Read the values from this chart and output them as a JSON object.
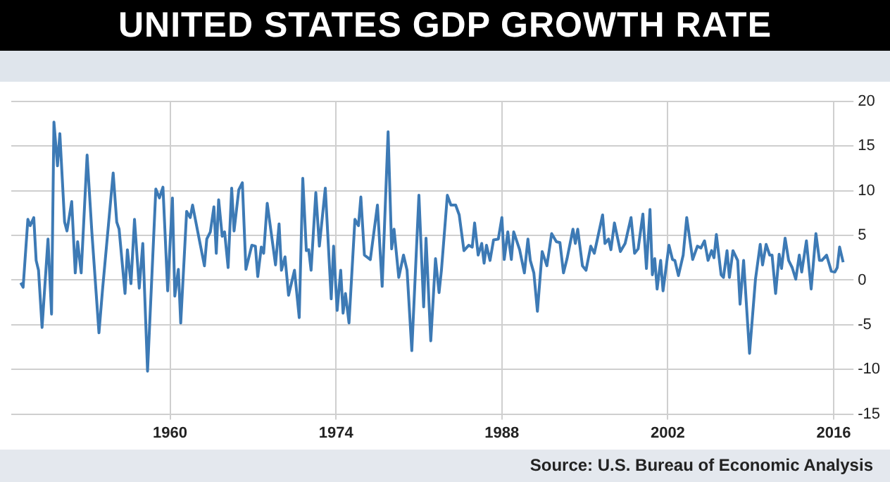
{
  "chart_data": {
    "type": "line",
    "title": "UNITED STATES GDP GROWTH RATE",
    "x": [
      1947.4,
      1947.6,
      1948.0,
      1948.2,
      1948.5,
      1948.7,
      1948.9,
      1949.2,
      1949.7,
      1950.0,
      1950.2,
      1950.5,
      1950.7,
      1951.1,
      1951.3,
      1951.7,
      1952.0,
      1952.2,
      1952.5,
      1953.0,
      1953.4,
      1954.0,
      1954.3,
      1955.2,
      1955.5,
      1955.7,
      1956.2,
      1956.4,
      1956.7,
      1957.0,
      1957.4,
      1957.7,
      1958.1,
      1958.8,
      1959.1,
      1959.4,
      1959.8,
      1960.2,
      1960.4,
      1960.7,
      1960.9,
      1961.4,
      1961.7,
      1961.9,
      1962.5,
      1962.9,
      1963.1,
      1963.4,
      1963.7,
      1963.9,
      1964.1,
      1964.4,
      1964.6,
      1964.9,
      1965.2,
      1965.4,
      1965.8,
      1966.1,
      1966.4,
      1966.9,
      1967.2,
      1967.4,
      1967.7,
      1967.9,
      1968.2,
      1968.9,
      1969.2,
      1969.4,
      1969.7,
      1970.0,
      1970.5,
      1970.9,
      1971.2,
      1971.5,
      1971.7,
      1971.9,
      1972.3,
      1972.6,
      1973.1,
      1973.6,
      1973.8,
      1974.1,
      1974.4,
      1974.6,
      1974.8,
      1975.1,
      1975.6,
      1975.9,
      1976.1,
      1976.4,
      1976.9,
      1977.5,
      1977.9,
      1978.4,
      1978.7,
      1978.9,
      1979.3,
      1979.7,
      1980.0,
      1980.4,
      1981.0,
      1981.4,
      1981.6,
      1982.0,
      1982.4,
      1982.7,
      1982.9,
      1983.4,
      1983.7,
      1984.1,
      1984.4,
      1984.8,
      1985.2,
      1985.5,
      1985.7,
      1986.0,
      1986.3,
      1986.5,
      1986.7,
      1987.0,
      1987.3,
      1987.7,
      1988.0,
      1988.2,
      1988.5,
      1988.8,
      1989.0,
      1989.5,
      1989.9,
      1990.2,
      1990.4,
      1990.7,
      1991.0,
      1991.4,
      1991.8,
      1992.2,
      1992.6,
      1992.9,
      1993.2,
      1993.5,
      1994.0,
      1994.2,
      1994.4,
      1994.8,
      1995.1,
      1995.5,
      1995.8,
      1996.5,
      1996.7,
      1997.0,
      1997.2,
      1997.5,
      1998.0,
      1998.4,
      1998.9,
      1999.2,
      1999.5,
      1999.9,
      2000.2,
      2000.5,
      2000.7,
      2000.9,
      2001.1,
      2001.4,
      2001.6,
      2002.1,
      2002.4,
      2002.6,
      2002.9,
      2003.3,
      2003.6,
      2004.1,
      2004.5,
      2004.8,
      2005.1,
      2005.4,
      2005.7,
      2005.9,
      2006.1,
      2006.5,
      2006.7,
      2007.0,
      2007.2,
      2007.5,
      2007.9,
      2008.1,
      2008.4,
      2008.9,
      2009.4,
      2009.8,
      2010.0,
      2010.3,
      2010.6,
      2010.8,
      2011.1,
      2011.4,
      2011.6,
      2011.9,
      2012.2,
      2012.5,
      2012.8,
      2013.1,
      2013.3,
      2013.7,
      2014.1,
      2014.5,
      2014.8,
      2015.0,
      2015.4,
      2015.8,
      2016.1,
      2016.3,
      2016.5,
      2016.8
    ],
    "values": [
      -0.3,
      -0.8,
      6.8,
      6.1,
      7.0,
      2.2,
      1.1,
      -5.3,
      4.6,
      -3.8,
      17.7,
      12.8,
      16.4,
      6.5,
      5.5,
      8.8,
      0.8,
      4.3,
      0.8,
      14.0,
      5.4,
      -5.9,
      -1.1,
      12.0,
      6.5,
      5.7,
      -1.5,
      3.4,
      -0.4,
      6.8,
      -0.9,
      4.1,
      -10.2,
      10.2,
      9.2,
      10.4,
      -1.2,
      9.2,
      -1.8,
      1.2,
      -4.8,
      7.7,
      7.0,
      8.4,
      4.3,
      1.6,
      4.6,
      5.4,
      8.2,
      3.0,
      9.0,
      4.9,
      5.4,
      1.4,
      10.3,
      5.5,
      10.1,
      10.9,
      1.2,
      3.9,
      3.8,
      0.4,
      3.7,
      3.0,
      8.6,
      1.7,
      6.3,
      1.1,
      2.6,
      -1.7,
      1.1,
      -4.2,
      11.4,
      3.3,
      3.4,
      1.1,
      9.8,
      3.8,
      10.3,
      -2.1,
      3.8,
      -3.4,
      1.1,
      -3.7,
      -1.5,
      -4.8,
      6.8,
      6.1,
      9.3,
      2.8,
      2.3,
      8.4,
      -0.7,
      16.6,
      3.5,
      5.7,
      0.3,
      2.8,
      1.1,
      -7.9,
      9.5,
      -3.0,
      4.7,
      -6.8,
      2.4,
      -1.4,
      1.1,
      9.5,
      8.4,
      8.4,
      7.3,
      3.3,
      3.9,
      3.7,
      6.4,
      2.8,
      4.1,
      1.9,
      3.9,
      2.2,
      4.5,
      4.6,
      7.0,
      2.3,
      5.4,
      2.3,
      5.4,
      3.4,
      0.8,
      4.6,
      2.2,
      0.8,
      -3.5,
      3.2,
      1.6,
      5.2,
      4.3,
      4.2,
      0.8,
      2.4,
      5.7,
      4.1,
      5.7,
      1.6,
      1.1,
      3.8,
      3.0,
      7.3,
      4.1,
      4.6,
      3.4,
      6.4,
      3.2,
      4.1,
      7.0,
      3.0,
      3.5,
      7.4,
      1.3,
      7.9,
      0.6,
      2.4,
      -1.0,
      2.2,
      -1.2,
      3.9,
      2.3,
      2.2,
      0.5,
      2.8,
      7.0,
      2.3,
      3.8,
      3.6,
      4.4,
      2.2,
      3.3,
      2.5,
      5.1,
      0.6,
      0.3,
      3.3,
      0.3,
      3.3,
      2.2,
      -2.7,
      2.2,
      -8.2,
      0.1,
      4.0,
      1.7,
      4.0,
      2.8,
      2.8,
      -1.5,
      2.9,
      1.3,
      4.7,
      2.2,
      1.4,
      0.1,
      2.8,
      0.9,
      4.4,
      -1.0,
      5.2,
      2.2,
      2.2,
      2.8,
      1.0,
      0.9,
      1.4,
      3.7,
      2.0
    ],
    "color": "#3d7ab5",
    "xlim": [
      1946.6,
      2017.2
    ],
    "xticks": [
      1960,
      1974,
      1988,
      2002,
      2016
    ],
    "ylim": [
      -15,
      20
    ],
    "yticks": [
      -15,
      -10,
      -5,
      0,
      5,
      10,
      15,
      20
    ],
    "grid": true,
    "annotations": [
      "Source: U.S. Bureau of Economic Analysis"
    ]
  }
}
